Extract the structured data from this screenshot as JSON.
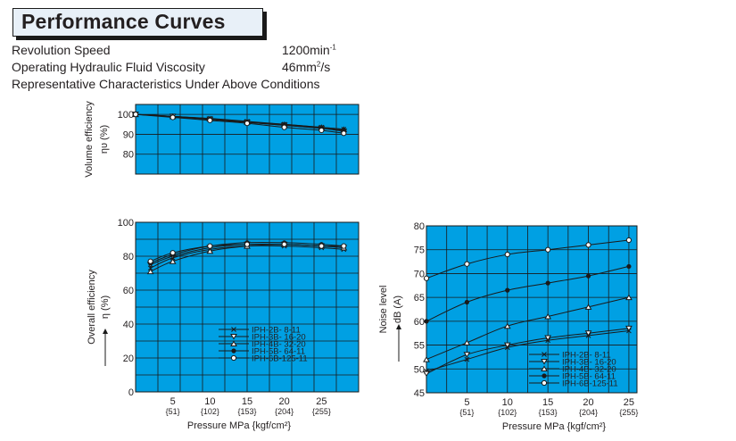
{
  "header": {
    "title": "Performance Curves",
    "speed_label": "Revolution Speed",
    "speed_value": "1200min",
    "speed_unit_sup": "-1",
    "viscosity_label": "Operating Hydraulic Fluid Viscosity",
    "viscosity_value": "46mm",
    "viscosity_unit_sup": "2",
    "viscosity_unit_tail": "/s",
    "conditions_note": "Representative Characteristics Under Above Conditions"
  },
  "colors": {
    "plot_bg": "#00a0e3",
    "grid": "#1a1a1a",
    "line": "#1a1a1a"
  },
  "legend_entries": [
    "IPH-2B-   8-11",
    "IPH-3B-  16-20",
    "IPH-4B-  32-20",
    "IPH-5B-  64-11",
    "IPH-6B-125-11"
  ],
  "marker_icons": [
    "cross-marker-icon",
    "down-triangle-marker-icon",
    "up-triangle-marker-icon",
    "filled-circle-marker-icon",
    "open-circle-marker-icon"
  ],
  "chart_data": [
    {
      "type": "line",
      "id": "volume",
      "ylabel_line1": "Volume efficiency",
      "ylabel_line2": "ηυ  (%)",
      "yticks": [
        "100",
        "90",
        "80"
      ],
      "xlim": [
        0,
        30
      ],
      "ylim": [
        70,
        105
      ],
      "series": [
        {
          "values": [
            [
              0,
              100
            ],
            [
              5,
              99
            ],
            [
              10,
              98
            ],
            [
              15,
              96.5
            ],
            [
              20,
              95
            ],
            [
              25,
              93.5
            ],
            [
              28,
              92.5
            ]
          ]
        },
        {
          "values": [
            [
              0,
              100
            ],
            [
              5,
              99
            ],
            [
              10,
              97.5
            ],
            [
              15,
              96
            ],
            [
              20,
              94.5
            ],
            [
              25,
              93
            ],
            [
              28,
              91.5
            ]
          ]
        },
        {
          "values": [
            [
              0,
              100
            ],
            [
              5,
              99
            ],
            [
              10,
              97.8
            ],
            [
              15,
              96.2
            ],
            [
              20,
              95
            ],
            [
              25,
              93.5
            ],
            [
              28,
              92.5
            ]
          ]
        },
        {
          "values": [
            [
              0,
              100
            ],
            [
              5,
              98.8
            ],
            [
              10,
              97.5
            ],
            [
              15,
              96
            ],
            [
              20,
              94.5
            ],
            [
              25,
              93
            ],
            [
              28,
              92
            ]
          ]
        },
        {
          "values": [
            [
              0,
              100
            ],
            [
              5,
              98.5
            ],
            [
              10,
              97
            ],
            [
              15,
              95.5
            ],
            [
              20,
              93.5
            ],
            [
              25,
              92
            ],
            [
              28,
              90.5
            ]
          ]
        }
      ]
    },
    {
      "type": "line",
      "id": "overall",
      "ylabel_line1": "Overall efficiency",
      "ylabel_line2": "η  (%)",
      "yticks": [
        "100",
        "80",
        "60",
        "40",
        "20",
        "0"
      ],
      "xlim": [
        0,
        30
      ],
      "ylim": [
        0,
        100
      ],
      "series": [
        {
          "values": [
            [
              2,
              73
            ],
            [
              5,
              79
            ],
            [
              10,
              84
            ],
            [
              15,
              86
            ],
            [
              20,
              86
            ],
            [
              25,
              85
            ],
            [
              28,
              84
            ]
          ]
        },
        {
          "values": [
            [
              2,
              75
            ],
            [
              5,
              80
            ],
            [
              10,
              85
            ],
            [
              15,
              87
            ],
            [
              20,
              87
            ],
            [
              25,
              86
            ],
            [
              28,
              85
            ]
          ]
        },
        {
          "values": [
            [
              2,
              71
            ],
            [
              5,
              77
            ],
            [
              10,
              83
            ],
            [
              15,
              86
            ],
            [
              20,
              87
            ],
            [
              25,
              86
            ],
            [
              28,
              85
            ]
          ]
        },
        {
          "values": [
            [
              2,
              76
            ],
            [
              5,
              81
            ],
            [
              10,
              86
            ],
            [
              15,
              88
            ],
            [
              20,
              88
            ],
            [
              25,
              87
            ],
            [
              28,
              86
            ]
          ]
        },
        {
          "values": [
            [
              2,
              77
            ],
            [
              5,
              82
            ],
            [
              10,
              86
            ],
            [
              15,
              87
            ],
            [
              20,
              87
            ],
            [
              25,
              86
            ],
            [
              28,
              86
            ]
          ]
        }
      ]
    },
    {
      "type": "line",
      "id": "noise",
      "ylabel_line1": "Noise level",
      "ylabel_line2": "dB (A)",
      "yticks": [
        "80",
        "75",
        "70",
        "65",
        "60",
        "55",
        "50",
        "45"
      ],
      "xlim": [
        0,
        26
      ],
      "ylim": [
        45,
        80
      ],
      "series": [
        {
          "values": [
            [
              0,
              49.5
            ],
            [
              5,
              52
            ],
            [
              10,
              54.5
            ],
            [
              15,
              56
            ],
            [
              20,
              57
            ],
            [
              25,
              58
            ]
          ]
        },
        {
          "values": [
            [
              0,
              49
            ],
            [
              5,
              53
            ],
            [
              10,
              55
            ],
            [
              15,
              56.5
            ],
            [
              20,
              57.5
            ],
            [
              25,
              58.5
            ]
          ]
        },
        {
          "values": [
            [
              0,
              52
            ],
            [
              5,
              55.5
            ],
            [
              10,
              59
            ],
            [
              15,
              61
            ],
            [
              20,
              63
            ],
            [
              25,
              65
            ]
          ]
        },
        {
          "values": [
            [
              0,
              60
            ],
            [
              5,
              64
            ],
            [
              10,
              66.5
            ],
            [
              15,
              68
            ],
            [
              20,
              69.5
            ],
            [
              25,
              71.5
            ]
          ]
        },
        {
          "values": [
            [
              0,
              69
            ],
            [
              5,
              72
            ],
            [
              10,
              74
            ],
            [
              15,
              75
            ],
            [
              20,
              76
            ],
            [
              25,
              77
            ]
          ]
        }
      ]
    }
  ],
  "x_axis": {
    "ticks": [
      5,
      10,
      15,
      20,
      25
    ],
    "tick_labels": [
      "5",
      "10",
      "15",
      "20",
      "25"
    ],
    "kgf_labels": [
      "{51}",
      "{102}",
      "{153}",
      "{204}",
      "{255}"
    ],
    "label": "Pressure MPa {kgf/cm²}"
  }
}
